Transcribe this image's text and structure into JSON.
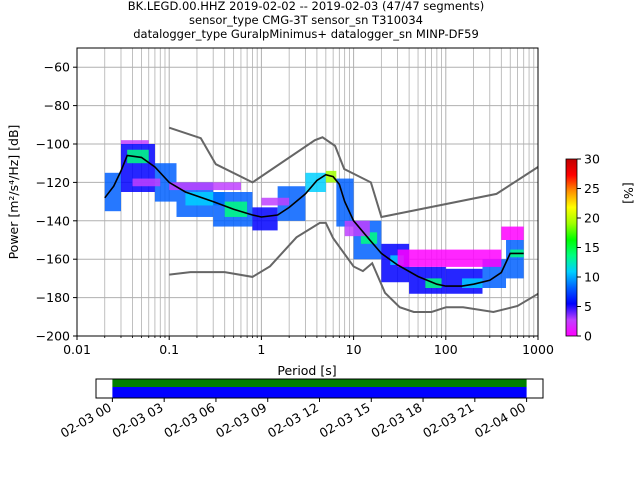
{
  "chart_data": {
    "type": "heatmap",
    "title_lines": [
      "BK.LEGD.00.HHZ   2019-02-02 -- 2019-02-03  (47/47 segments)",
      "sensor_type CMG-3T sensor_sn T310034",
      "datalogger_type GuralpMinimus+ datalogger_sn MINP-DF59"
    ],
    "xlabel": "Period [s]",
    "ylabel": "Power [m²/s⁴/Hz] [dB]",
    "xscale": "log",
    "xlim": [
      0.01,
      1000
    ],
    "ylim": [
      -200,
      -50
    ],
    "x_ticks": [
      {
        "value": 0.01,
        "label": "0.01"
      },
      {
        "value": 0.1,
        "label": "0.1"
      },
      {
        "value": 1,
        "label": "1"
      },
      {
        "value": 10,
        "label": "10"
      },
      {
        "value": 100,
        "label": "100"
      },
      {
        "value": 1000,
        "label": "1000"
      }
    ],
    "y_ticks": [
      {
        "value": -60,
        "label": "−60"
      },
      {
        "value": -80,
        "label": "−80"
      },
      {
        "value": -100,
        "label": "−100"
      },
      {
        "value": -120,
        "label": "−120"
      },
      {
        "value": -140,
        "label": "−140"
      },
      {
        "value": -160,
        "label": "−160"
      },
      {
        "value": -180,
        "label": "−180"
      },
      {
        "value": -200,
        "label": "−200"
      }
    ],
    "grid": true,
    "colorbar": {
      "label": "[%]",
      "range": [
        0,
        30
      ],
      "ticks": [
        {
          "value": 0,
          "label": "0"
        },
        {
          "value": 5,
          "label": "5"
        },
        {
          "value": 10,
          "label": "10"
        },
        {
          "value": 15,
          "label": "15"
        },
        {
          "value": 20,
          "label": "20"
        },
        {
          "value": 25,
          "label": "25"
        },
        {
          "value": 30,
          "label": "30"
        }
      ],
      "colors": [
        "#ff00ff",
        "#c040ff",
        "#0000ff",
        "#0060ff",
        "#00d0ff",
        "#00ff80",
        "#00ff00",
        "#a0ff00",
        "#ffff00",
        "#ff9000",
        "#ff0000",
        "#c00000"
      ]
    },
    "noise_models": [
      {
        "name": "high",
        "points": [
          [
            0.1,
            -91.5
          ],
          [
            0.22,
            -97
          ],
          [
            0.32,
            -110.5
          ],
          [
            0.8,
            -120
          ],
          [
            3.8,
            -98
          ],
          [
            4.6,
            -96.5
          ],
          [
            6.3,
            -101
          ],
          [
            7.9,
            -113
          ],
          [
            15.4,
            -120
          ],
          [
            20,
            -138
          ],
          [
            354.8,
            -126
          ],
          [
            1000,
            -112
          ]
        ]
      },
      {
        "name": "low",
        "points": [
          [
            0.1,
            -168
          ],
          [
            0.17,
            -166.7
          ],
          [
            0.4,
            -166.7
          ],
          [
            0.8,
            -169.2
          ],
          [
            1.24,
            -163.7
          ],
          [
            2.4,
            -148.6
          ],
          [
            4.3,
            -141.1
          ],
          [
            5,
            -141.1
          ],
          [
            6,
            -149
          ],
          [
            10,
            -163.8
          ],
          [
            12.6,
            -166.2
          ],
          [
            15.9,
            -162.1
          ],
          [
            21.9,
            -177.5
          ],
          [
            31.6,
            -185
          ],
          [
            45,
            -187.5
          ],
          [
            70,
            -187.5
          ],
          [
            101,
            -185
          ],
          [
            154,
            -185
          ],
          [
            328,
            -187.5
          ],
          [
            600,
            -184.4
          ],
          [
            1000,
            -178
          ]
        ]
      }
    ],
    "mode_curve": [
      [
        0.02,
        -128
      ],
      [
        0.025,
        -122
      ],
      [
        0.03,
        -114
      ],
      [
        0.035,
        -106
      ],
      [
        0.05,
        -107
      ],
      [
        0.07,
        -112
      ],
      [
        0.1,
        -120
      ],
      [
        0.15,
        -125
      ],
      [
        0.3,
        -130
      ],
      [
        0.5,
        -134
      ],
      [
        0.8,
        -137
      ],
      [
        1,
        -138
      ],
      [
        1.5,
        -137
      ],
      [
        2,
        -133
      ],
      [
        3,
        -126
      ],
      [
        4,
        -119
      ],
      [
        5,
        -116
      ],
      [
        6,
        -117
      ],
      [
        7,
        -121
      ],
      [
        8,
        -130
      ],
      [
        10,
        -140
      ],
      [
        15,
        -150
      ],
      [
        20,
        -157
      ],
      [
        30,
        -163
      ],
      [
        50,
        -169
      ],
      [
        80,
        -173
      ],
      [
        100,
        -174
      ],
      [
        150,
        -174
      ],
      [
        200,
        -173
      ],
      [
        300,
        -171
      ],
      [
        400,
        -167
      ],
      [
        500,
        -157
      ],
      [
        700,
        -157
      ]
    ],
    "density_blocks": [
      {
        "x": [
          0.02,
          0.03
        ],
        "y": [
          -135,
          -115
        ],
        "v": 7
      },
      {
        "x": [
          0.03,
          0.07
        ],
        "y": [
          -125,
          -100
        ],
        "v": 6
      },
      {
        "x": [
          0.035,
          0.06
        ],
        "y": [
          -110,
          -103
        ],
        "v": 14
      },
      {
        "x": [
          0.07,
          0.12
        ],
        "y": [
          -130,
          -110
        ],
        "v": 8
      },
      {
        "x": [
          0.12,
          0.3
        ],
        "y": [
          -138,
          -120
        ],
        "v": 7
      },
      {
        "x": [
          0.15,
          0.4
        ],
        "y": [
          -132,
          -125
        ],
        "v": 12
      },
      {
        "x": [
          0.3,
          0.8
        ],
        "y": [
          -143,
          -125
        ],
        "v": 7
      },
      {
        "x": [
          0.4,
          0.7
        ],
        "y": [
          -138,
          -130
        ],
        "v": 13
      },
      {
        "x": [
          0.8,
          1.5
        ],
        "y": [
          -145,
          -133
        ],
        "v": 6
      },
      {
        "x": [
          1.5,
          3
        ],
        "y": [
          -140,
          -122
        ],
        "v": 8
      },
      {
        "x": [
          3,
          5
        ],
        "y": [
          -125,
          -115
        ],
        "v": 10
      },
      {
        "x": [
          5,
          6.5
        ],
        "y": [
          -120,
          -114
        ],
        "v": 18
      },
      {
        "x": [
          6.5,
          10
        ],
        "y": [
          -143,
          -118
        ],
        "v": 8
      },
      {
        "x": [
          10,
          20
        ],
        "y": [
          -160,
          -140
        ],
        "v": 7
      },
      {
        "x": [
          12,
          18
        ],
        "y": [
          -152,
          -146
        ],
        "v": 14
      },
      {
        "x": [
          20,
          40
        ],
        "y": [
          -172,
          -152
        ],
        "v": 6
      },
      {
        "x": [
          25,
          35
        ],
        "y": [
          -163,
          -158
        ],
        "v": 12
      },
      {
        "x": [
          40,
          100
        ],
        "y": [
          -178,
          -164
        ],
        "v": 6
      },
      {
        "x": [
          60,
          90
        ],
        "y": [
          -175,
          -170
        ],
        "v": 14
      },
      {
        "x": [
          100,
          250
        ],
        "y": [
          -178,
          -165
        ],
        "v": 6
      },
      {
        "x": [
          150,
          250
        ],
        "y": [
          -175,
          -170
        ],
        "v": 12
      },
      {
        "x": [
          250,
          450
        ],
        "y": [
          -175,
          -160
        ],
        "v": 7
      },
      {
        "x": [
          450,
          700
        ],
        "y": [
          -170,
          -150
        ],
        "v": 7
      },
      {
        "x": [
          500,
          700
        ],
        "y": [
          -159,
          -155
        ],
        "v": 13
      },
      {
        "x": [
          30,
          400
        ],
        "y": [
          -164,
          -155
        ],
        "v": 1
      },
      {
        "x": [
          400,
          700
        ],
        "y": [
          -150,
          -143
        ],
        "v": 1
      },
      {
        "x": [
          0.03,
          0.06
        ],
        "y": [
          -100,
          -98
        ],
        "v": 2
      },
      {
        "x": [
          0.04,
          0.08
        ],
        "y": [
          -122,
          -118
        ],
        "v": 2
      },
      {
        "x": [
          0.1,
          0.6
        ],
        "y": [
          -124,
          -120
        ],
        "v": 2
      },
      {
        "x": [
          1,
          2
        ],
        "y": [
          -132,
          -128
        ],
        "v": 2
      },
      {
        "x": [
          8,
          15
        ],
        "y": [
          -148,
          -140
        ],
        "v": 2
      }
    ],
    "time_axis": {
      "labels": [
        "02-03 00",
        "02-03 03",
        "02-03 06",
        "02-03 09",
        "02-03 12",
        "02-03 15",
        "02-03 18",
        "02-03 21",
        "02-04 00"
      ],
      "range_hours": [
        -0.95,
        24.95
      ],
      "coverage_hours": [
        0,
        24
      ],
      "data_color": "#0000ff",
      "coverage_color": "#008000"
    }
  }
}
